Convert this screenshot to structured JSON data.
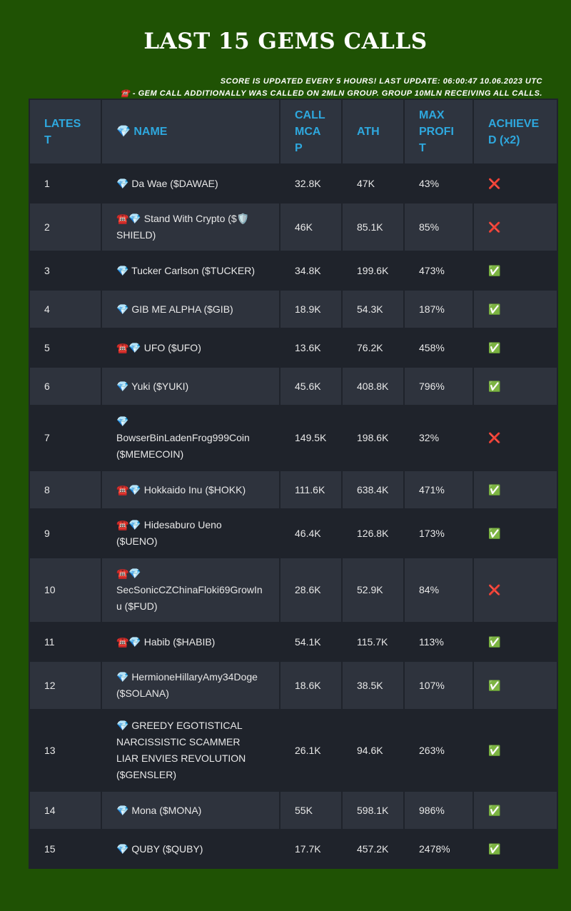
{
  "header": {
    "title": "LAST 15 GEMS CALLS",
    "notes": [
      "SCORE IS UPDATED EVERY 5 HOURS! LAST UPDATE: 06:00:47 10.06.2023 UTC",
      "☎️ - GEM CALL ADDITIONALLY WAS CALLED ON 2MLN GROUP. GROUP 10MLN RECEIVING ALL CALLS."
    ]
  },
  "table": {
    "columns": [
      "LATEST",
      "💎 NAME",
      "CALL MCAP",
      "ATH",
      "MAX PROFIT",
      "ACHIEVED (x2)"
    ],
    "rows": [
      [
        "1",
        "💎 Da Wae ($DAWAE)",
        "32.8K",
        "47K",
        "43%",
        "❌"
      ],
      [
        "2",
        "☎️💎 Stand With Crypto ($🛡️SHIELD)",
        "46K",
        "85.1K",
        "85%",
        "❌"
      ],
      [
        "3",
        "💎 Tucker Carlson ($TUCKER)",
        "34.8K",
        "199.6K",
        "473%",
        "✅"
      ],
      [
        "4",
        "💎 GIB ME ALPHA ($GIB)",
        "18.9K",
        "54.3K",
        "187%",
        "✅"
      ],
      [
        "5",
        "☎️💎 UFO ($UFO)",
        "13.6K",
        "76.2K",
        "458%",
        "✅"
      ],
      [
        "6",
        "💎 Yuki ($YUKI)",
        "45.6K",
        "408.8K",
        "796%",
        "✅"
      ],
      [
        "7",
        "💎 BowserBinLadenFrog999Coin ($MEMECOIN)",
        "149.5K",
        "198.6K",
        "32%",
        "❌"
      ],
      [
        "8",
        "☎️💎 Hokkaido Inu ($HOKK)",
        "111.6K",
        "638.4K",
        "471%",
        "✅"
      ],
      [
        "9",
        "☎️💎 Hidesaburo Ueno ($UENO)",
        "46.4K",
        "126.8K",
        "173%",
        "✅"
      ],
      [
        "10",
        "☎️💎 SecSonicCZChinaFloki69GrowInu ($FUD)",
        "28.6K",
        "52.9K",
        "84%",
        "❌"
      ],
      [
        "11",
        "☎️💎 Habib ($HABIB)",
        "54.1K",
        "115.7K",
        "113%",
        "✅"
      ],
      [
        "12",
        "💎 HermioneHillaryAmy34Doge ($SOLANA)",
        "18.6K",
        "38.5K",
        "107%",
        "✅"
      ],
      [
        "13",
        "💎 GREEDY EGOTISTICAL NARCISSISTIC SCAMMER LIAR ENVIES REVOLUTION ($GENSLER)",
        "26.1K",
        "94.6K",
        "263%",
        "✅"
      ],
      [
        "14",
        "💎 Mona ($MONA)",
        "55K",
        "598.1K",
        "986%",
        "✅"
      ],
      [
        "15",
        "💎 QUBY ($QUBY)",
        "17.7K",
        "457.2K",
        "2478%",
        "✅"
      ]
    ]
  }
}
